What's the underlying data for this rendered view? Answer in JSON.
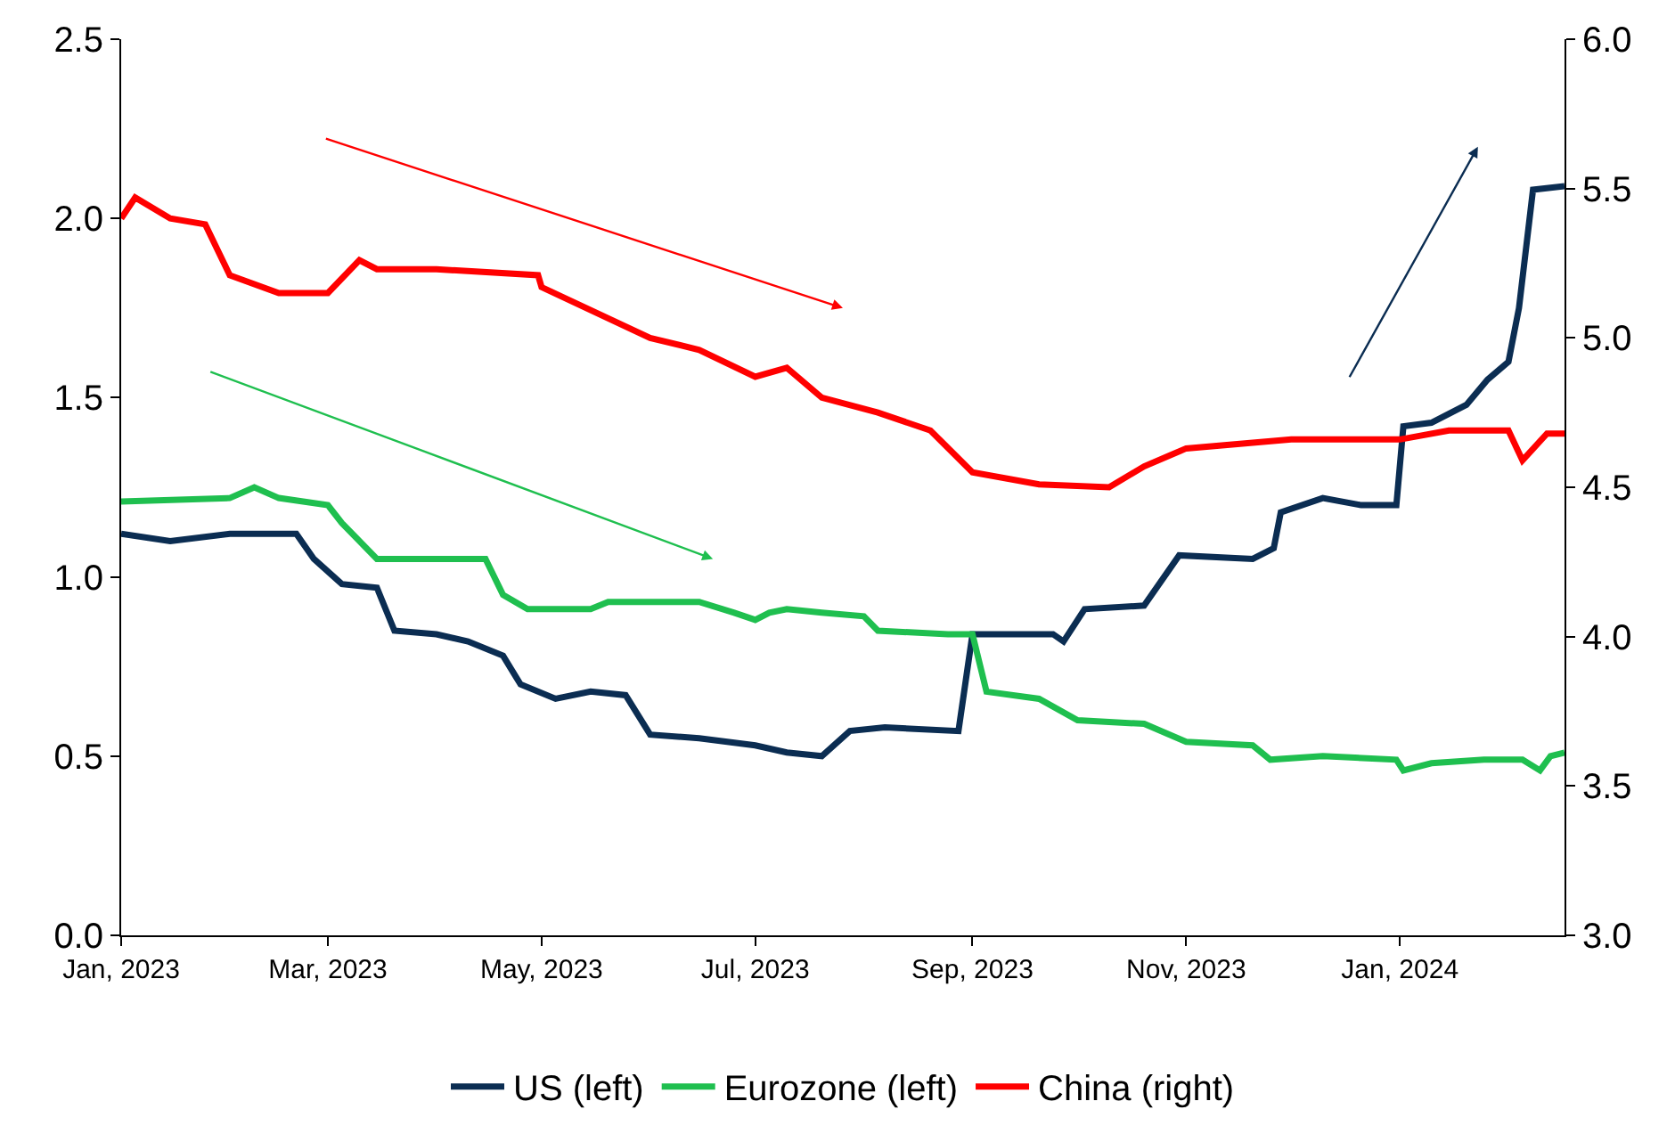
{
  "chart_data": {
    "type": "line",
    "xlim": [
      "2023-01-01",
      "2024-02-17"
    ],
    "xticks": [
      {
        "value": "2023-01-01",
        "label": "Jan, 2023"
      },
      {
        "value": "2023-03-01",
        "label": "Mar, 2023"
      },
      {
        "value": "2023-05-01",
        "label": "May, 2023"
      },
      {
        "value": "2023-07-01",
        "label": "Jul, 2023"
      },
      {
        "value": "2023-09-01",
        "label": "Sep, 2023"
      },
      {
        "value": "2023-11-01",
        "label": "Nov, 2023"
      },
      {
        "value": "2024-01-01",
        "label": "Jan, 2024"
      }
    ],
    "ylim": [
      0,
      2.5
    ],
    "yticks": [
      {
        "value": 0,
        "label": "0.0"
      },
      0.5,
      {
        "value": 1,
        "label": "1.0"
      },
      1.5,
      {
        "value": 2,
        "label": "2.0"
      },
      2.5
    ],
    "y2lim": [
      3,
      6
    ],
    "y2ticks": [
      {
        "value": 3,
        "label": "3.0"
      },
      3.5,
      {
        "value": 4,
        "label": "4.0"
      },
      4.5,
      {
        "value": 5,
        "label": "5.0"
      },
      5.5,
      {
        "value": 6,
        "label": "6.0"
      }
    ],
    "legend": "bottom",
    "marker": "none",
    "line_style": "solid",
    "series": [
      {
        "name": "US (left)",
        "color": "#0b2d52",
        "x": [
          "2023-01-01",
          "2023-01-15",
          "2023-02-01",
          "2023-02-20",
          "2023-02-25",
          "2023-03-05",
          "2023-03-15",
          "2023-03-20",
          "2023-04-01",
          "2023-04-10",
          "2023-04-20",
          "2023-04-25",
          "2023-05-05",
          "2023-05-15",
          "2023-05-25",
          "2023-06-01",
          "2023-06-15",
          "2023-07-01",
          "2023-07-10",
          "2023-07-20",
          "2023-07-28",
          "2023-08-07",
          "2023-08-28",
          "2023-09-01",
          "2023-09-24",
          "2023-09-27",
          "2023-10-03",
          "2023-10-20",
          "2023-10-30",
          "2023-11-20",
          "2023-11-26",
          "2023-11-28",
          "2023-12-10",
          "2023-12-21",
          "2023-12-31",
          "2024-01-02",
          "2024-01-10",
          "2024-01-20",
          "2024-01-26",
          "2024-02-01",
          "2024-02-04",
          "2024-02-08",
          "2024-02-17"
        ],
        "values": [
          1.12,
          1.1,
          1.12,
          1.12,
          1.05,
          0.98,
          0.97,
          0.85,
          0.84,
          0.82,
          0.78,
          0.7,
          0.66,
          0.68,
          0.67,
          0.56,
          0.55,
          0.53,
          0.51,
          0.5,
          0.57,
          0.58,
          0.57,
          0.84,
          0.84,
          0.82,
          0.91,
          0.92,
          1.06,
          1.05,
          1.08,
          1.18,
          1.22,
          1.2,
          1.2,
          1.42,
          1.43,
          1.48,
          1.55,
          1.6,
          1.75,
          2.08,
          2.09
        ]
      },
      {
        "name": "Eurozone (left)",
        "color": "#1fbf4f",
        "x": [
          "2023-01-01",
          "2023-02-01",
          "2023-02-08",
          "2023-02-15",
          "2023-03-01",
          "2023-03-05",
          "2023-03-15",
          "2023-04-15",
          "2023-04-20",
          "2023-04-27",
          "2023-05-15",
          "2023-05-20",
          "2023-06-15",
          "2023-06-25",
          "2023-07-01",
          "2023-07-05",
          "2023-07-10",
          "2023-07-20",
          "2023-08-01",
          "2023-08-05",
          "2023-08-25",
          "2023-09-01",
          "2023-09-05",
          "2023-09-20",
          "2023-10-01",
          "2023-10-20",
          "2023-11-01",
          "2023-11-20",
          "2023-11-25",
          "2023-12-10",
          "2023-12-31",
          "2024-01-02",
          "2024-01-10",
          "2024-01-25",
          "2024-02-05",
          "2024-02-10",
          "2024-02-13",
          "2024-02-17"
        ],
        "values": [
          1.21,
          1.22,
          1.25,
          1.22,
          1.2,
          1.15,
          1.05,
          1.05,
          0.95,
          0.91,
          0.91,
          0.93,
          0.93,
          0.9,
          0.88,
          0.9,
          0.91,
          0.9,
          0.89,
          0.85,
          0.84,
          0.84,
          0.68,
          0.66,
          0.6,
          0.59,
          0.54,
          0.53,
          0.49,
          0.5,
          0.49,
          0.46,
          0.48,
          0.49,
          0.49,
          0.46,
          0.5,
          0.51
        ]
      },
      {
        "name": "China (right)",
        "color": "#ff0000",
        "axis": "y2",
        "x": [
          "2023-01-01",
          "2023-01-05",
          "2023-01-15",
          "2023-01-25",
          "2023-02-01",
          "2023-02-15",
          "2023-03-01",
          "2023-03-10",
          "2023-03-15",
          "2023-04-01",
          "2023-04-30",
          "2023-05-01",
          "2023-06-01",
          "2023-06-15",
          "2023-07-01",
          "2023-07-10",
          "2023-07-20",
          "2023-08-05",
          "2023-08-20",
          "2023-09-01",
          "2023-09-20",
          "2023-10-10",
          "2023-10-20",
          "2023-11-01",
          "2023-12-01",
          "2024-01-01",
          "2024-01-15",
          "2024-02-01",
          "2024-02-05",
          "2024-02-12",
          "2024-02-17"
        ],
        "values": [
          5.4,
          5.47,
          5.4,
          5.38,
          5.21,
          5.15,
          5.15,
          5.26,
          5.23,
          5.23,
          5.21,
          5.17,
          5.0,
          4.96,
          4.87,
          4.9,
          4.8,
          4.75,
          4.69,
          4.55,
          4.51,
          4.5,
          4.57,
          4.63,
          4.66,
          4.66,
          4.69,
          4.69,
          4.59,
          4.68,
          4.68
        ]
      }
    ]
  }
}
